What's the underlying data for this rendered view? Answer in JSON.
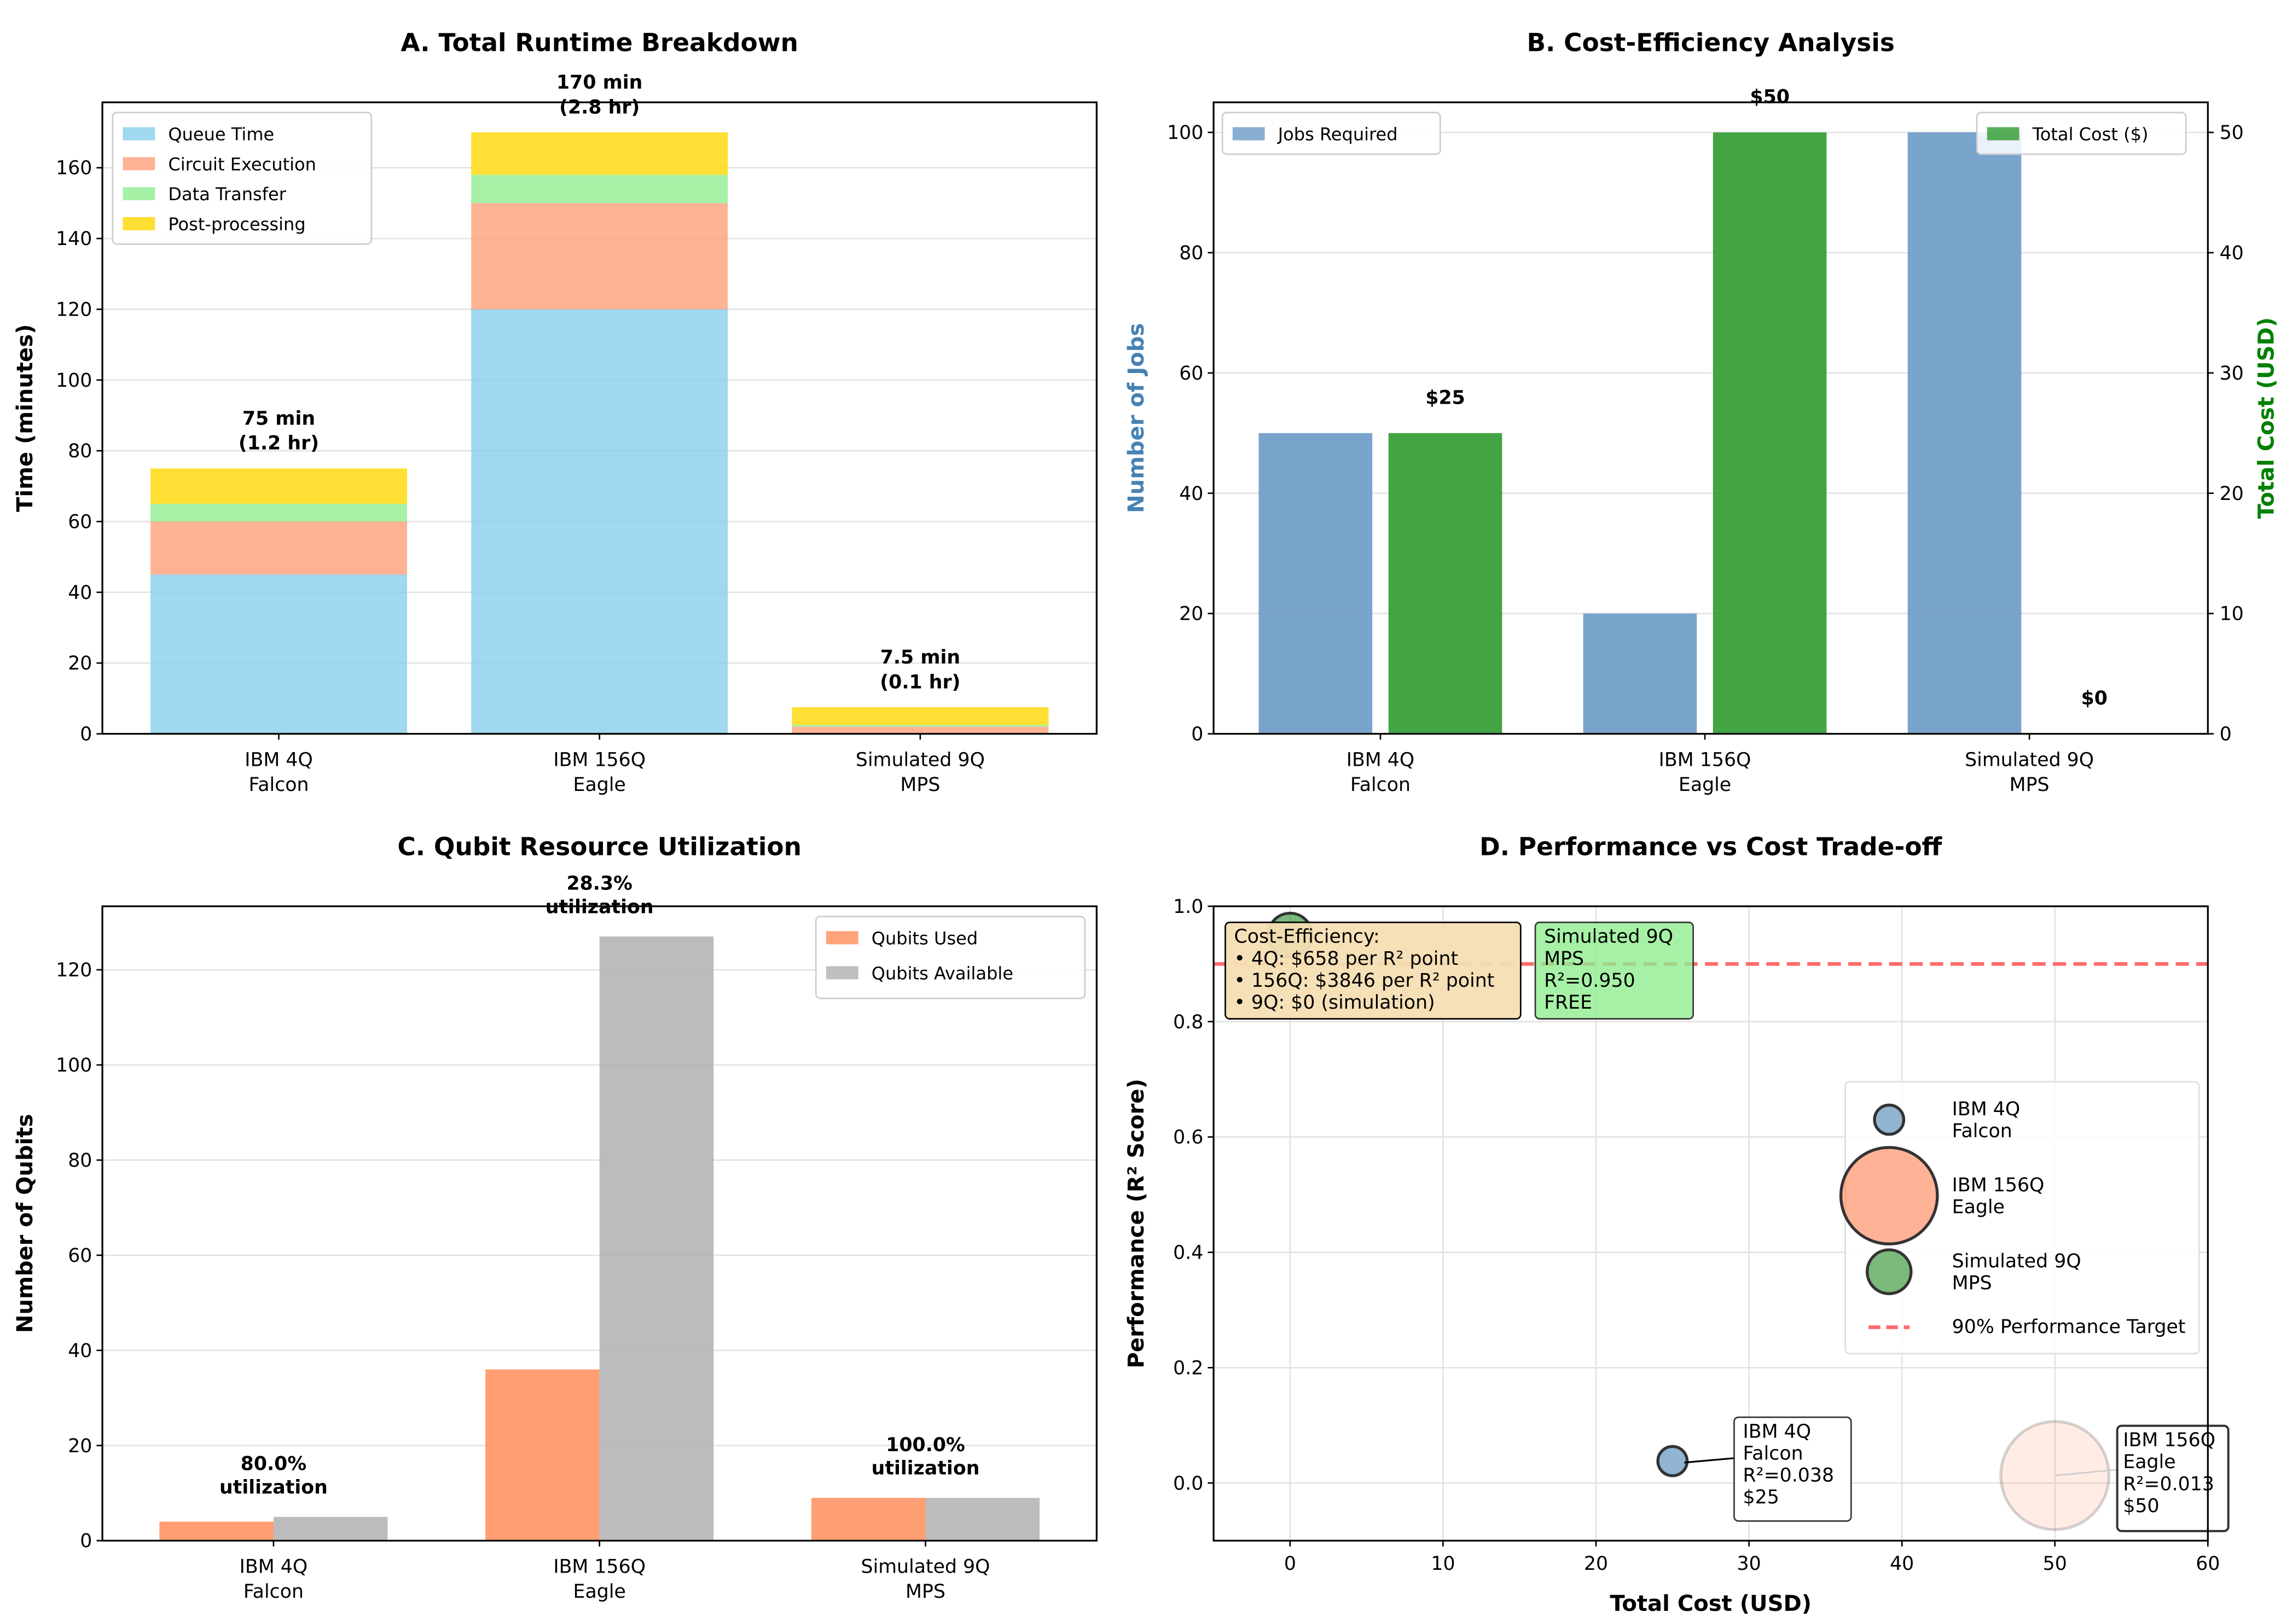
{
  "chart_data": [
    {
      "type": "bar",
      "stacked": true,
      "title": "A. Total Runtime Breakdown",
      "xlabel": "",
      "ylabel": "Time (minutes)",
      "categories": [
        "IBM 4Q\nFalcon",
        "IBM 156Q\nEagle",
        "Simulated 9Q\nMPS"
      ],
      "series": [
        {
          "name": "Queue Time",
          "color": "#87CEEB",
          "values": [
            45,
            120,
            0
          ]
        },
        {
          "name": "Circuit Execution",
          "color": "#FFA07A",
          "values": [
            15,
            30,
            2
          ]
        },
        {
          "name": "Data Transfer",
          "color": "#90EE90",
          "values": [
            5,
            8,
            0.5
          ]
        },
        {
          "name": "Post-processing",
          "color": "#FFD700",
          "values": [
            10,
            12,
            5
          ]
        }
      ],
      "data_labels": [
        "75 min\n(1.2 hr)",
        "170 min\n(2.8 hr)",
        "7.5 min\n(0.1 hr)"
      ],
      "ylim": [
        0,
        178.5
      ],
      "yticks": [
        0,
        20,
        40,
        60,
        80,
        100,
        120,
        140,
        160
      ],
      "grid": "y",
      "legend": "top-left"
    },
    {
      "type": "bar",
      "title": "B. Cost-Efficiency Analysis",
      "categories": [
        "IBM 4Q\nFalcon",
        "IBM 156Q\nEagle",
        "Simulated 9Q\nMPS"
      ],
      "ylabel": "Number of Jobs",
      "ylabel_color": "#4682B4",
      "y2label": "Total Cost (USD)",
      "y2label_color": "#008000",
      "series": [
        {
          "name": "Jobs Required",
          "color": "#6A9AC6",
          "axis": "left",
          "values": [
            50,
            20,
            100
          ]
        },
        {
          "name": "Total Cost ($)",
          "color": "#2E9A2E",
          "axis": "right",
          "values": [
            25,
            50,
            0
          ]
        }
      ],
      "data_labels": [
        "$25",
        "$50",
        "$0"
      ],
      "ylim": [
        0,
        105
      ],
      "yticks": [
        0,
        20,
        40,
        60,
        80,
        100
      ],
      "y2lim": [
        0,
        52.5
      ],
      "y2ticks": [
        0,
        10,
        20,
        30,
        40,
        50
      ],
      "grid": "y",
      "legend": [
        "top-left",
        "top-right"
      ]
    },
    {
      "type": "bar",
      "title": "C. Qubit Resource Utilization",
      "ylabel": "Number of Qubits",
      "categories": [
        "IBM 4Q\nFalcon",
        "IBM 156Q\nEagle",
        "Simulated 9Q\nMPS"
      ],
      "series": [
        {
          "name": "Qubits Used",
          "color": "#FF8C5A",
          "values": [
            4,
            36,
            9
          ]
        },
        {
          "name": "Qubits Available",
          "color": "#B0B0B0",
          "values": [
            5,
            127,
            9
          ]
        }
      ],
      "data_labels": [
        "80.0%\nutilization",
        "28.3%\nutilization",
        "100.0%\nutilization"
      ],
      "ylim": [
        0,
        133.35
      ],
      "yticks": [
        0,
        20,
        40,
        60,
        80,
        100,
        120
      ],
      "grid": "y",
      "legend": "top-right"
    },
    {
      "type": "scatter",
      "title": "D. Performance vs Cost Trade-off",
      "xlabel": "Total Cost (USD)",
      "ylabel": "Performance (R² Score)",
      "xlim": [
        -5,
        60
      ],
      "ylim": [
        -0.1,
        1.0
      ],
      "xticks": [
        0,
        10,
        20,
        30,
        40,
        50,
        60
      ],
      "yticks": [
        0.0,
        0.2,
        0.4,
        0.6,
        0.8,
        1.0
      ],
      "points": [
        {
          "name": "IBM 4Q\nFalcon",
          "x": 25,
          "y": 0.038,
          "color": "#4682B4",
          "annotation": "IBM 4Q\nFalcon\nR²=0.038\n$25"
        },
        {
          "name": "IBM 156Q\nEagle",
          "x": 50,
          "y": 0.013,
          "color": "#FF7F50",
          "annotation": "IBM 156Q\nEagle\nR²=0.013\n$50"
        },
        {
          "name": "Simulated 9Q\nMPS",
          "x": 0,
          "y": 0.95,
          "color": "#228B22",
          "annotation": "Simulated 9Q\nMPS\nR²=0.950\nFREE"
        }
      ],
      "target_line": {
        "name": "90% Performance Target",
        "y": 0.9,
        "color": "#FF6B6B"
      },
      "info_box": "Cost-Efficiency:\n• 4Q: $658 per R² point\n• 156Q: $3846 per R² point\n• 9Q: $0 (simulation)",
      "grid": "both",
      "legend": "bottom-right"
    }
  ]
}
